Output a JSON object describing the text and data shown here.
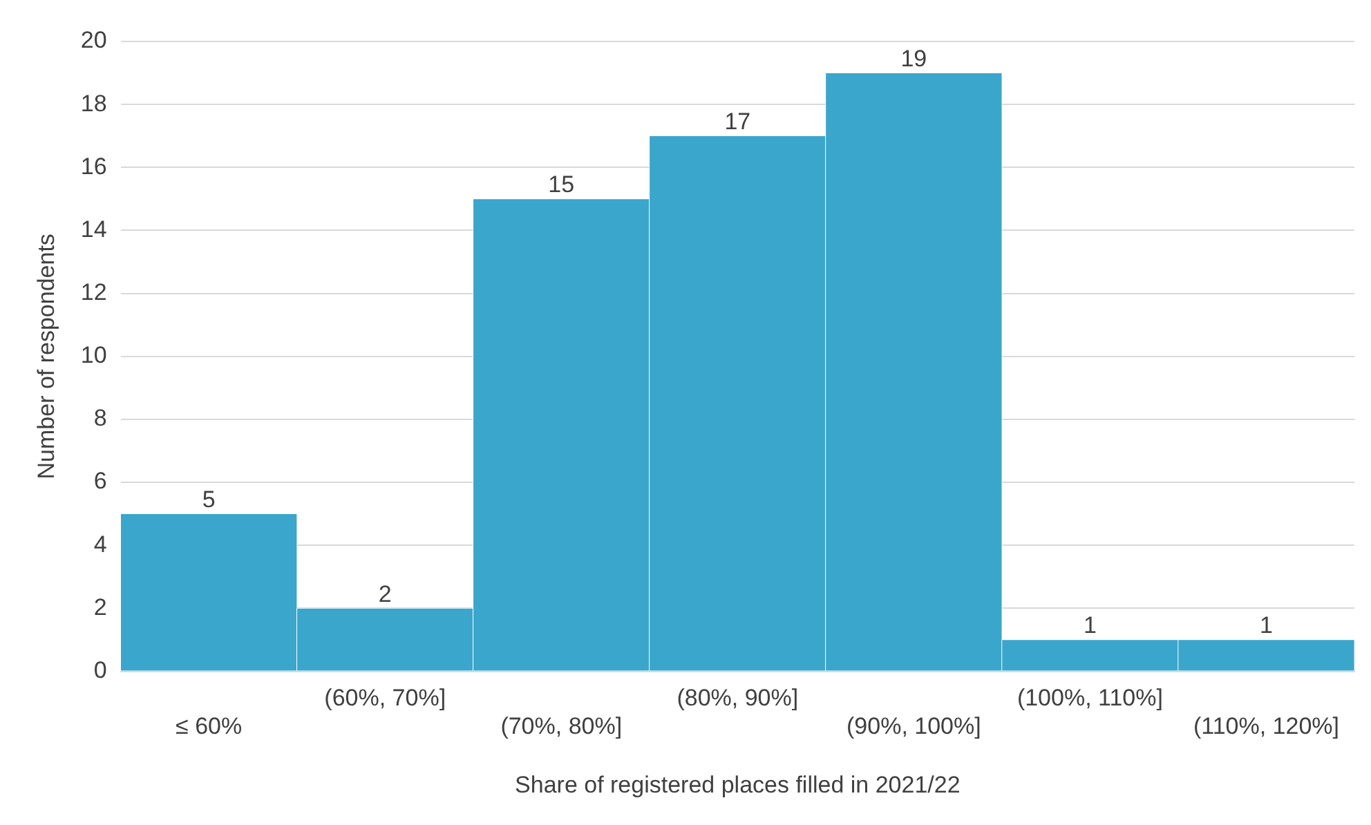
{
  "chart_data": {
    "type": "bar",
    "xlabel": "Share of registered places filled in 2021/22",
    "ylabel": "Number of respondents",
    "categories": [
      "≤ 60%",
      "(60%, 70%]",
      "(70%, 80%]",
      "(80%, 90%]",
      "(90%, 100%]",
      "(100%, 110%]",
      "(110%, 120%]"
    ],
    "values": [
      5,
      2,
      15,
      17,
      19,
      1,
      1
    ],
    "color": "#3aa6cc",
    "ylim": [
      0,
      20
    ],
    "yticks": [
      0,
      2,
      4,
      6,
      8,
      10,
      12,
      14,
      16,
      18,
      20
    ],
    "grid": "y",
    "legend": false,
    "data_labels": true
  }
}
